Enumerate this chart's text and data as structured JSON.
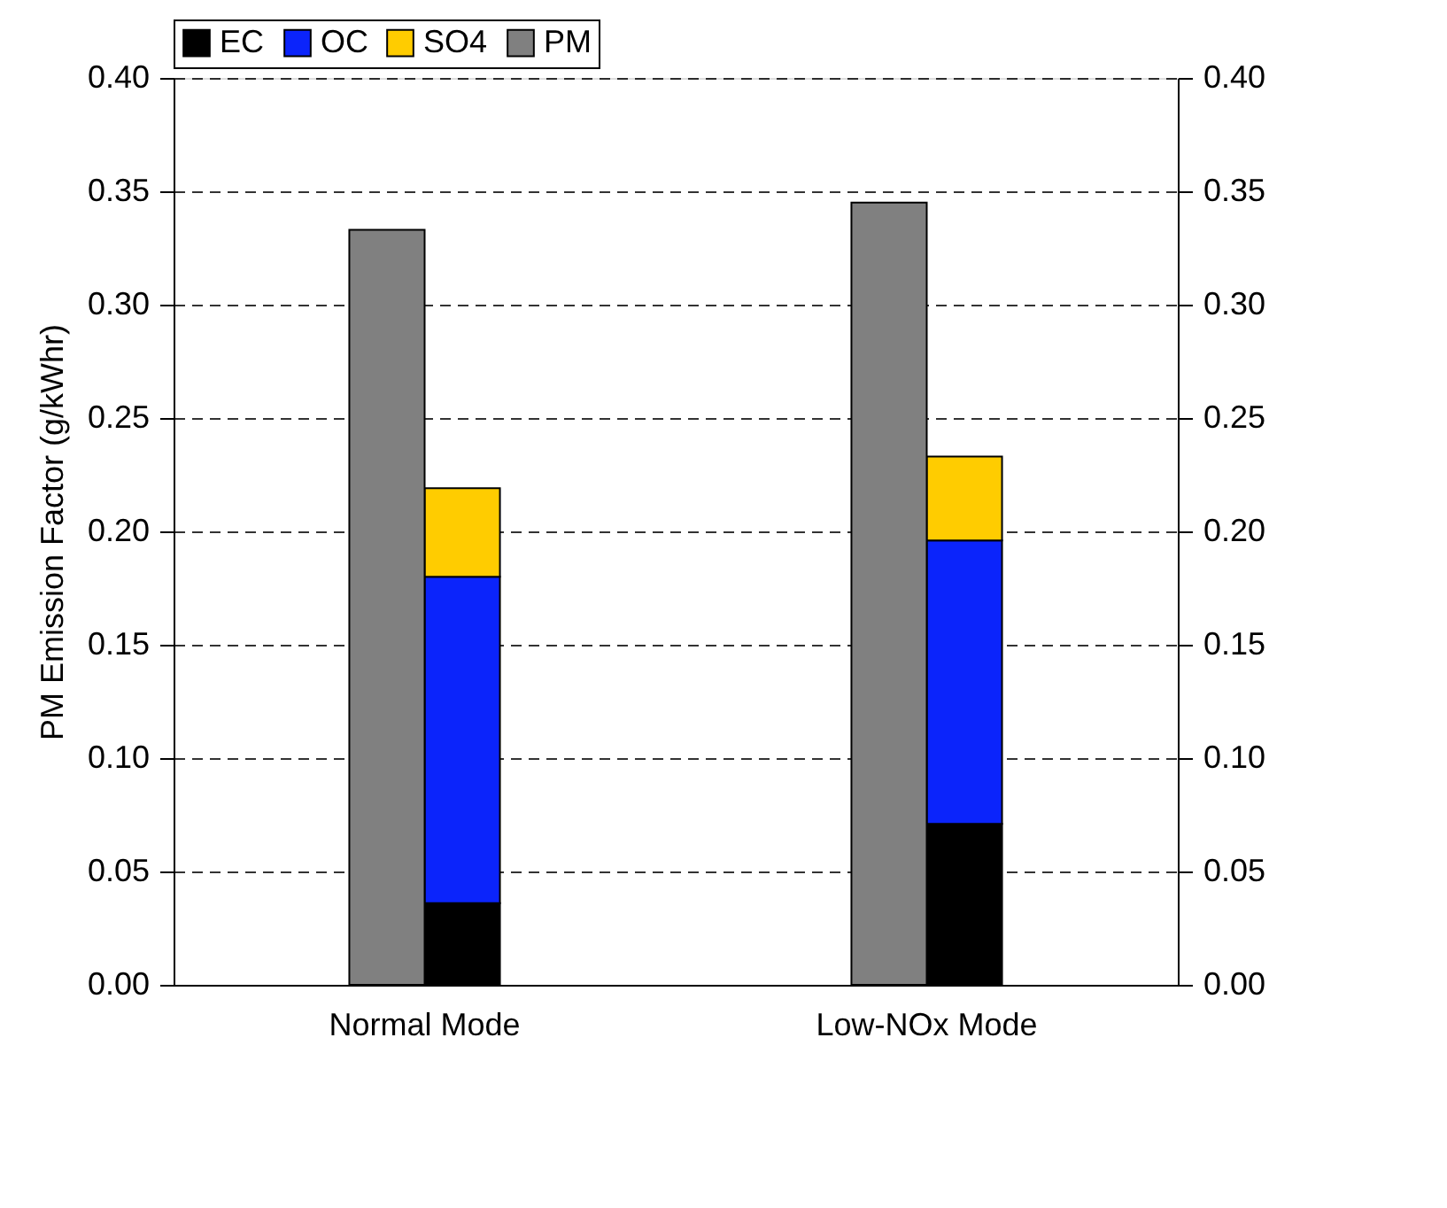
{
  "chart_data": {
    "type": "bar",
    "ylabel": "PM Emission Factor (g/kWhr)",
    "categories": [
      "Normal Mode",
      "Low-NOx Mode"
    ],
    "series": [
      {
        "name": "EC",
        "color": "#000000",
        "values": [
          0.036,
          0.071
        ],
        "base": [
          0,
          0
        ]
      },
      {
        "name": "OC",
        "color": "#0b24fb",
        "values": [
          0.144,
          0.125
        ],
        "base": [
          0.036,
          0.071
        ]
      },
      {
        "name": "SO4",
        "color": "#ffcc00",
        "values": [
          0.039,
          0.037
        ],
        "base": [
          0.18,
          0.196
        ]
      },
      {
        "name": "PM",
        "color": "#808080",
        "values": [
          0.333,
          0.345
        ]
      }
    ],
    "ylim": [
      0,
      0.4
    ],
    "yticks": [
      {
        "value": 0,
        "label": "0.00"
      },
      {
        "value": 0.05,
        "label": "0.05"
      },
      {
        "value": 0.1,
        "label": "0.10"
      },
      {
        "value": 0.15,
        "label": "0.15"
      },
      {
        "value": 0.2,
        "label": "0.20"
      },
      {
        "value": 0.25,
        "label": "0.25"
      },
      {
        "value": 0.3,
        "label": "0.30"
      },
      {
        "value": 0.35,
        "label": "0.35"
      },
      {
        "value": 0.4,
        "label": "0.40"
      }
    ],
    "y2lim": [
      0,
      0.4
    ],
    "y2ticks": [
      {
        "value": 0,
        "label": "0.00"
      },
      {
        "value": 0.05,
        "label": "0.05"
      },
      {
        "value": 0.1,
        "label": "0.10"
      },
      {
        "value": 0.15,
        "label": "0.15"
      },
      {
        "value": 0.2,
        "label": "0.20"
      },
      {
        "value": 0.25,
        "label": "0.25"
      },
      {
        "value": 0.3,
        "label": "0.30"
      },
      {
        "value": 0.35,
        "label": "0.35"
      },
      {
        "value": 0.4,
        "label": "0.40"
      }
    ],
    "grid": "y",
    "legend": "top"
  }
}
